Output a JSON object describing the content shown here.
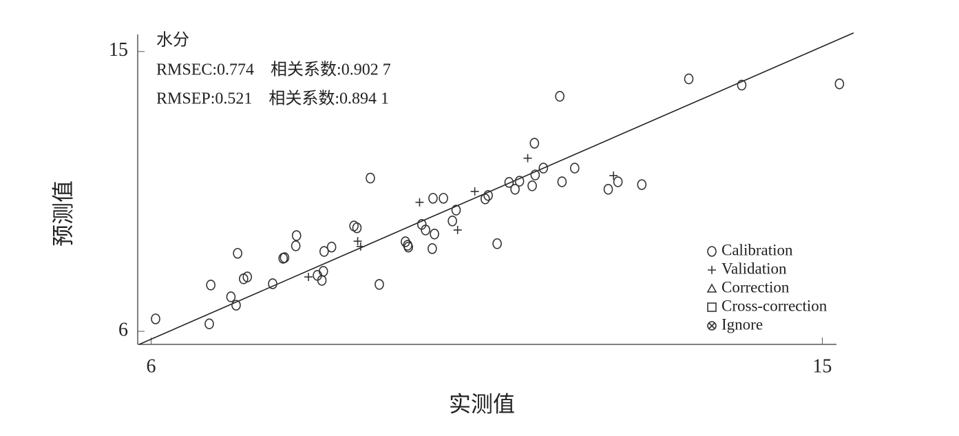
{
  "chart_data": {
    "type": "scatter",
    "xlabel": "实测值",
    "ylabel": "预测值",
    "annotations": [
      "水分",
      "RMSEC:0.774　相关系数:0.902 7",
      "RMSEP:0.521　相关系数:0.894 1"
    ],
    "xlim": [
      5.82,
      15.19
    ],
    "ylim": [
      5.58,
      15.55
    ],
    "xticks": [
      6,
      15
    ],
    "yticks": [
      6,
      15
    ],
    "color": "#333333",
    "reference_line": {
      "x": [
        5.84,
        15.42
      ],
      "y": [
        5.58,
        15.6
      ]
    },
    "series": [
      {
        "name": "Calibration",
        "marker": "circle",
        "x": [
          6.06,
          6.8,
          6.78,
          7.07,
          7.14,
          7.16,
          7.24,
          7.29,
          7.63,
          7.77,
          7.79,
          7.95,
          7.94,
          8.23,
          8.29,
          8.31,
          8.32,
          8.42,
          8.72,
          8.76,
          8.94,
          9.06,
          9.41,
          9.44,
          9.45,
          9.63,
          9.68,
          9.77,
          9.78,
          9.8,
          9.92,
          10.04,
          10.09,
          10.48,
          10.52,
          10.64,
          10.8,
          10.88,
          10.94,
          11.11,
          11.14,
          11.15,
          11.26,
          11.48,
          11.51,
          11.68,
          12.13,
          12.26,
          12.58,
          13.21,
          13.92,
          15.23
        ],
        "values": [
          6.4,
          7.49,
          6.24,
          7.11,
          6.84,
          8.51,
          7.69,
          7.75,
          7.53,
          8.35,
          8.37,
          9.08,
          8.75,
          7.8,
          7.64,
          7.93,
          8.57,
          8.71,
          9.39,
          9.33,
          10.93,
          7.51,
          8.88,
          8.77,
          8.71,
          9.44,
          9.26,
          8.66,
          10.28,
          9.13,
          10.28,
          9.55,
          9.9,
          10.26,
          10.37,
          8.82,
          10.79,
          10.57,
          10.83,
          10.68,
          12.05,
          11.03,
          11.25,
          13.56,
          10.81,
          11.25,
          10.57,
          10.81,
          10.72,
          14.12,
          13.92,
          13.96
        ]
      },
      {
        "name": "Validation",
        "marker": "plus",
        "x": [
          8.11,
          8.77,
          8.81,
          9.6,
          10.11,
          10.34,
          11.05,
          12.2
        ],
        "values": [
          7.75,
          8.9,
          8.73,
          10.15,
          9.26,
          10.5,
          11.57,
          11.01
        ]
      },
      {
        "name": "Correction",
        "marker": "triangle",
        "x": [],
        "values": []
      },
      {
        "name": "Cross-correction",
        "marker": "square",
        "x": [],
        "values": []
      },
      {
        "name": "Ignore",
        "marker": "xcircle",
        "x": [],
        "values": []
      }
    ]
  }
}
